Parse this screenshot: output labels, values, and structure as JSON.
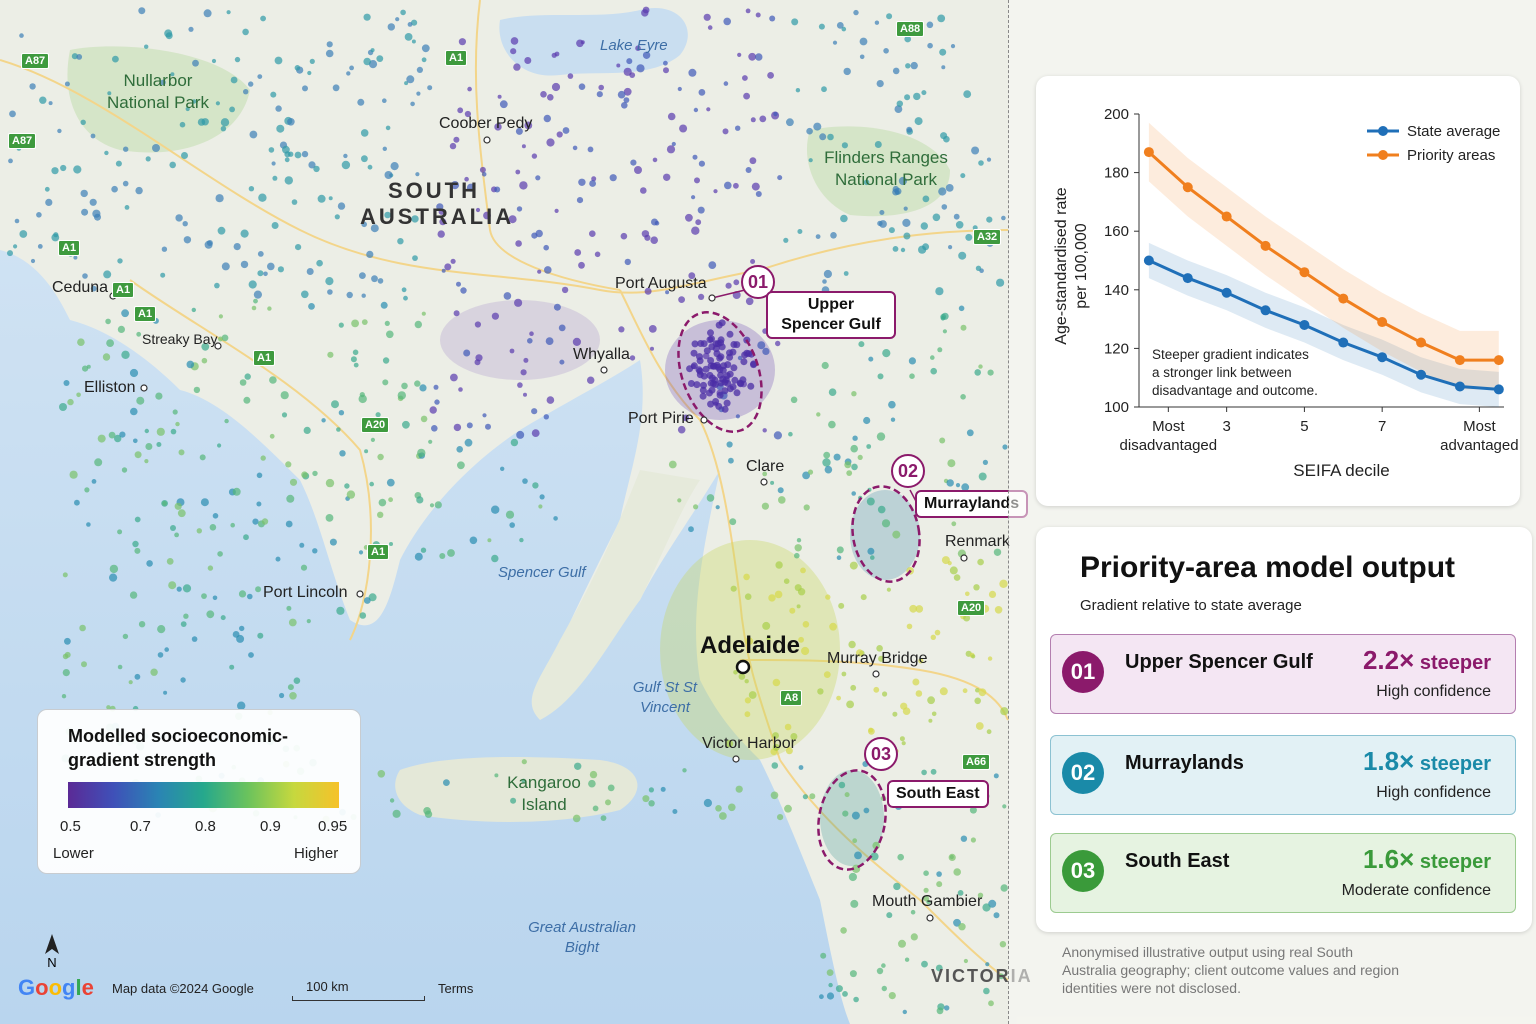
{
  "map": {
    "regions": {
      "south_australia": "SOUTH AUSTRALIA",
      "victoria": "VICTORIA"
    },
    "places": {
      "coober_pedy": "Coober Pedy",
      "ceduna": "Ceduna",
      "streaky_bay": "Streaky Bay",
      "elliston": "Elliston",
      "port_augusta": "Port Augusta",
      "whyalla": "Whyalla",
      "port_pirie": "Port Pirie",
      "clare": "Clare",
      "renmark": "Renmark",
      "port_lincoln": "Port Lincoln",
      "adelaide": "Adelaide",
      "murray_bridge": "Murray Bridge",
      "victor_harbor": "Victor Harbor",
      "mount_gambier": "Mouth Gambier"
    },
    "water": {
      "lake_eyre": "Lake Eyre",
      "spencer_gulf": "Spencer Gulf",
      "gulf_st_vincent": "Gulf St St Vincent",
      "great_australian_bight": "Great Australian Bight"
    },
    "parks": {
      "nullarbor": "Nullarbor National Park",
      "flinders": "Flinders Ranges National Park",
      "kangaroo_island": "Kangaroo Island"
    },
    "roads": [
      "A87",
      "A87",
      "A1",
      "A1",
      "A1",
      "A1",
      "A1",
      "A1",
      "A20",
      "A32",
      "A88",
      "A20",
      "A8",
      "A66"
    ],
    "priority_areas": [
      {
        "num": "01",
        "label": "Upper Spencer Gulf"
      },
      {
        "num": "02",
        "label": "Murraylands"
      },
      {
        "num": "03",
        "label": "South East"
      }
    ]
  },
  "legend": {
    "title": "Modelled socioeconomic-gradient strength",
    "ticks": [
      "0.5",
      "0.7",
      "0.8",
      "0.9",
      "0.95"
    ],
    "low": "Lower",
    "high": "Higher"
  },
  "attribution": {
    "logo": "Google",
    "north": "N",
    "map_data": "Map data ©2024 Google",
    "scale": "100 km",
    "terms": "Terms"
  },
  "chart_data": {
    "type": "line",
    "x": [
      1,
      2,
      3,
      4,
      5,
      6,
      7,
      8,
      9,
      10
    ],
    "series": [
      {
        "name": "State average",
        "color": "#1f6fb8",
        "values": [
          150,
          144,
          139,
          133,
          128,
          122,
          117,
          111,
          107,
          106
        ]
      },
      {
        "name": "Priority areas",
        "color": "#f07f1e",
        "values": [
          187,
          175,
          165,
          155,
          146,
          137,
          129,
          122,
          116,
          116
        ]
      }
    ],
    "ylabel": "Age-standardised rate per 100,000",
    "xlabel": "SEIFA decile",
    "ylim": [
      100,
      200
    ],
    "yticks": [
      "100",
      "120",
      "140",
      "160",
      "180",
      "200"
    ],
    "xticks": [
      {
        "x": 1.5,
        "label": "Most disadvantaged"
      },
      {
        "x": 3,
        "label": "3"
      },
      {
        "x": 5,
        "label": "5"
      },
      {
        "x": 7,
        "label": "7"
      },
      {
        "x": 9.5,
        "label": "Most advantaged"
      }
    ],
    "annotation": "Steeper gradient indicates a stronger link between disadvantage and outcome.",
    "legend_position": "top-right"
  },
  "output": {
    "title": "Priority-area model output",
    "subtitle": "Gradient relative to state average",
    "rows": [
      {
        "num": "01",
        "name": "Upper Spencer Gulf",
        "value": "2.2×",
        "unit": "steeper",
        "confidence": "High confidence",
        "color": "#8b1a6b",
        "bg": "#f4e6f3",
        "border": "#b47fb0"
      },
      {
        "num": "02",
        "name": "Murraylands",
        "value": "1.8×",
        "unit": "steeper",
        "confidence": "High confidence",
        "color": "#1a8aa8",
        "bg": "#e2f1f5",
        "border": "#8cc2d2"
      },
      {
        "num": "03",
        "name": "South East",
        "value": "1.6×",
        "unit": "steeper",
        "confidence": "Moderate confidence",
        "color": "#3a9a3a",
        "bg": "#e6f3e1",
        "border": "#9ccb90"
      }
    ]
  },
  "footnote": "Anonymised illustrative output using real South Australia geography; client outcome values and region identities were not disclosed."
}
